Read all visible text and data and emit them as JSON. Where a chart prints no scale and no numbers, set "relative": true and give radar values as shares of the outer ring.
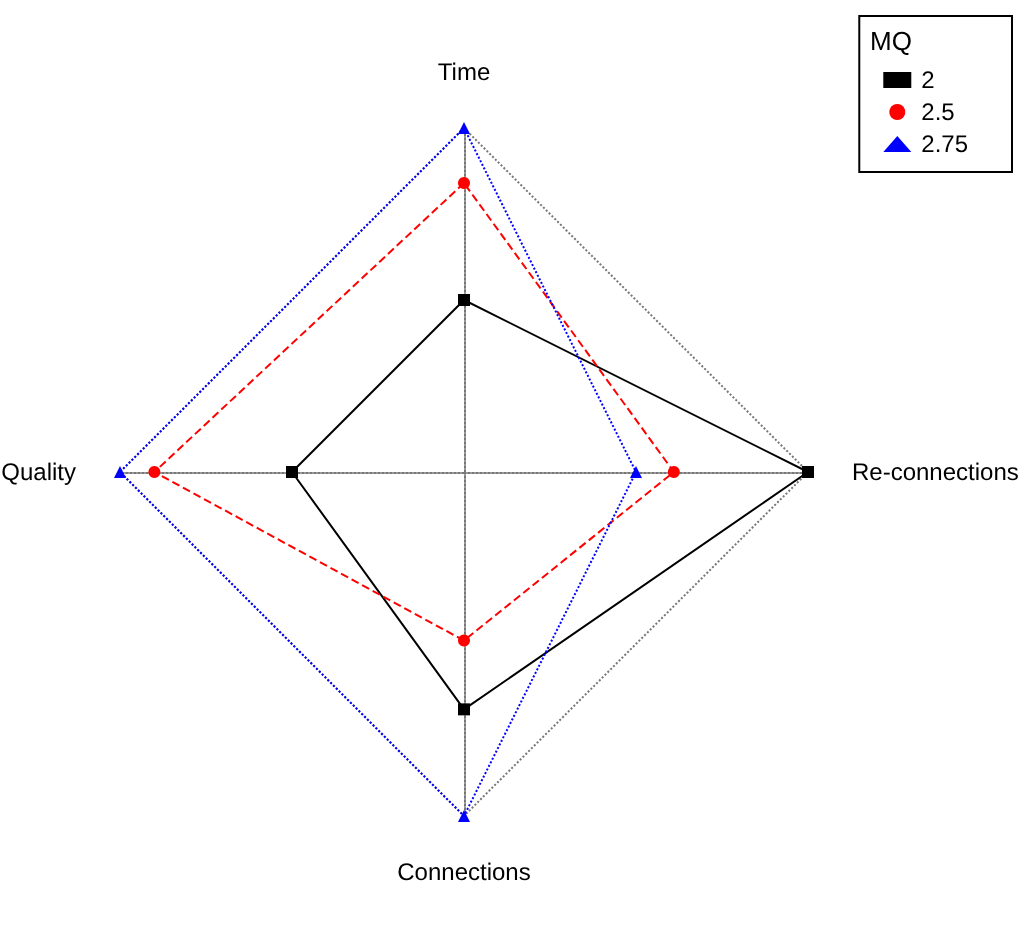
{
  "chart_data": {
    "type": "radar",
    "relative": true,
    "categories": [
      "Time",
      "Re-connections",
      "Connections",
      "Quality"
    ],
    "legend_title": "MQ",
    "legend": "top right",
    "grid": true,
    "series": [
      {
        "name": "2",
        "color": "#000000",
        "values": [
          0.5,
          1,
          0.69,
          0.5
        ],
        "marker": "square",
        "line_style": "solid"
      },
      {
        "name": "2.5",
        "color": "#ff0000",
        "values": [
          0.84,
          0.61,
          0.49,
          0.9
        ],
        "marker": "circle",
        "line_style": "dashed"
      },
      {
        "name": "2.75",
        "color": "#0000ff",
        "values": [
          1,
          0.5,
          1,
          1
        ],
        "marker": "triangle",
        "line_style": "dotted"
      }
    ]
  }
}
